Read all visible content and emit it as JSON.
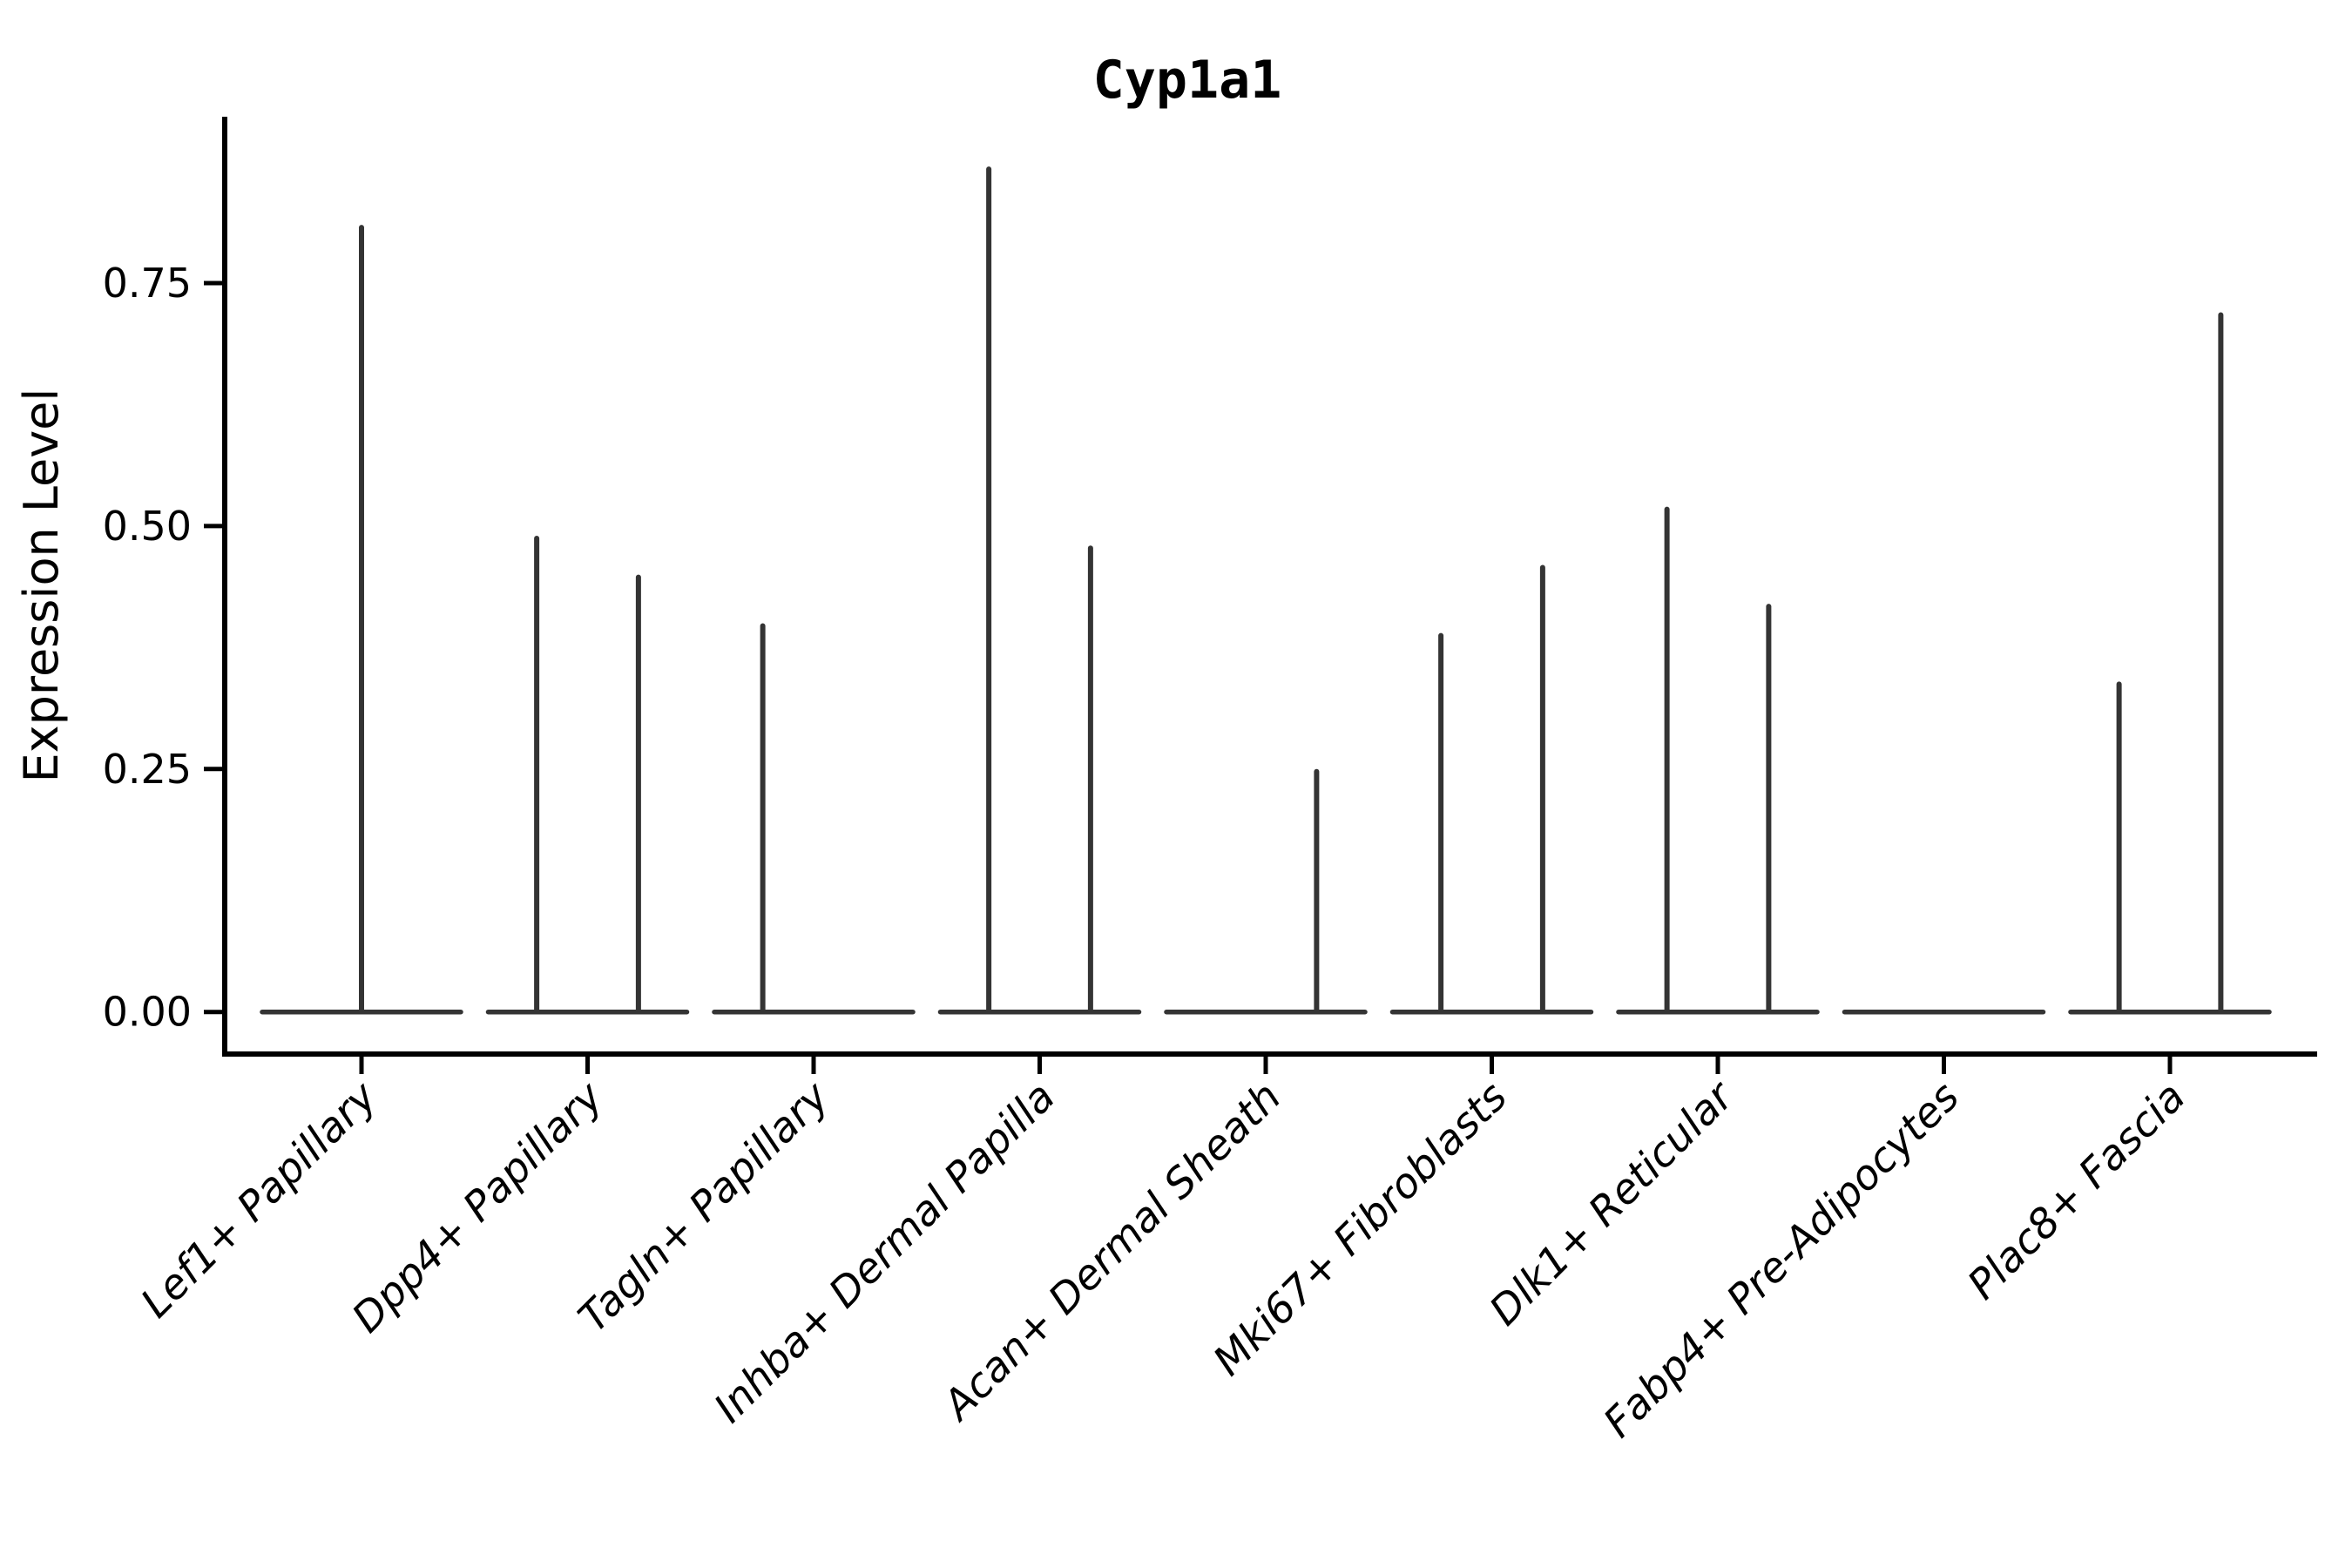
{
  "figure": {
    "title": "Cyp1a1",
    "ylabel": "Expression Level"
  },
  "chart_data": {
    "type": "violin",
    "title": "Cyp1a1",
    "xlabel": "",
    "ylabel": "Expression Level",
    "ylim": [
      -0.043,
      0.921
    ],
    "ytick_values": [
      0,
      0.25,
      0.5,
      0.75
    ],
    "ytick_labels": [
      "0.00",
      "0.25",
      "0.50",
      "0.75"
    ],
    "grid": false,
    "legend": "none",
    "violin_color": "#343434",
    "axis_color": "#000000",
    "baseline_value": 0,
    "description": "Sparse single-cell expression violins: each category shows a flat violin base at 0 with thin spikes reaching the max expression of each (split) violin",
    "categories": [
      {
        "label": "Lef1+ Papillary",
        "spikes": [
          {
            "offset": 0,
            "max": 0.81
          }
        ]
      },
      {
        "label": "Dpp4+ Papillary",
        "spikes": [
          {
            "offset": -0.225,
            "max": 0.49
          },
          {
            "offset": 0.225,
            "max": 0.45
          }
        ]
      },
      {
        "label": "Tagln+ Papillary",
        "spikes": [
          {
            "offset": -0.225,
            "max": 0.4
          }
        ]
      },
      {
        "label": "Inhba+ Dermal Papilla",
        "spikes": [
          {
            "offset": -0.225,
            "max": 0.87
          },
          {
            "offset": 0.225,
            "max": 0.48
          }
        ]
      },
      {
        "label": "Acan+ Dermal Sheath",
        "spikes": [
          {
            "offset": 0.225,
            "max": 0.25
          }
        ]
      },
      {
        "label": "Mki67+ Fibroblasts",
        "spikes": [
          {
            "offset": -0.225,
            "max": 0.39
          },
          {
            "offset": 0.225,
            "max": 0.46
          }
        ]
      },
      {
        "label": "Dlk1+ Reticular",
        "spikes": [
          {
            "offset": -0.225,
            "max": 0.52
          },
          {
            "offset": 0.225,
            "max": 0.42
          }
        ]
      },
      {
        "label": "Fabp4+ Pre-Adipocytes",
        "spikes": []
      },
      {
        "label": "Plac8+ Fascia",
        "spikes": [
          {
            "offset": -0.225,
            "max": 0.34
          },
          {
            "offset": 0.225,
            "max": 0.72
          }
        ]
      }
    ]
  }
}
